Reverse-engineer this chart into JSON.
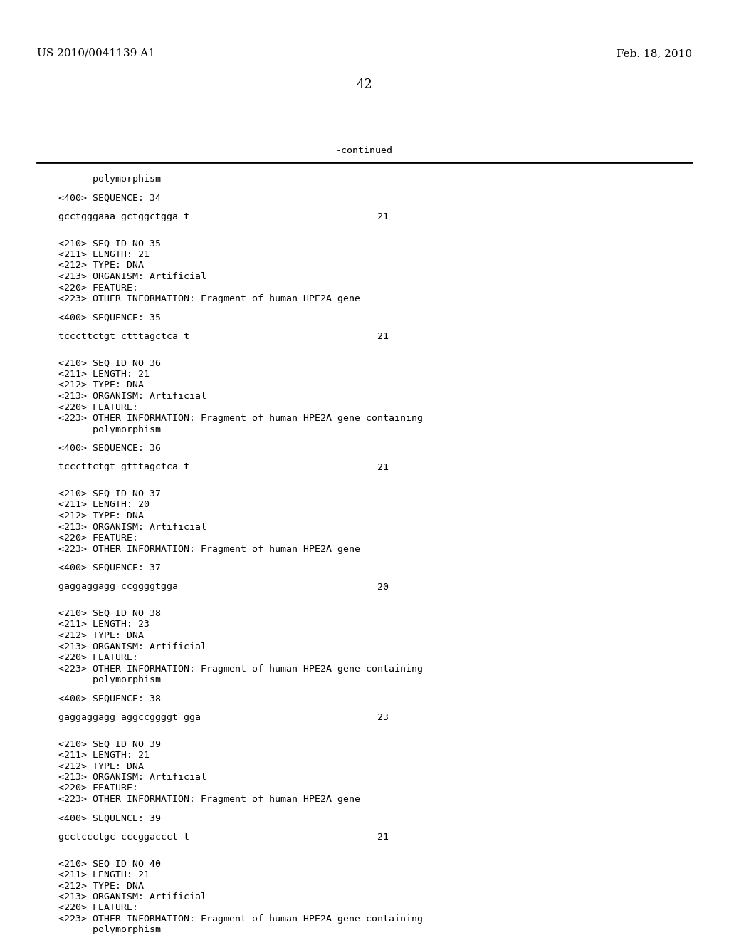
{
  "background_color": "#ffffff",
  "header_left": "US 2010/0041139 A1",
  "header_right": "Feb. 18, 2010",
  "page_number": "42",
  "continued_label": "-continued",
  "header_fontsize": 11,
  "page_num_fontsize": 13,
  "mono_fontsize": 9.5,
  "content_blocks": [
    {
      "type": "indent",
      "text": "      polymorphism"
    },
    {
      "type": "blank"
    },
    {
      "type": "mono",
      "text": "<400> SEQUENCE: 34"
    },
    {
      "type": "blank"
    },
    {
      "type": "seq",
      "text": "gcctgggaaa gctggctgga t",
      "num": "21"
    },
    {
      "type": "blank"
    },
    {
      "type": "blank"
    },
    {
      "type": "mono",
      "text": "<210> SEQ ID NO 35"
    },
    {
      "type": "mono",
      "text": "<211> LENGTH: 21"
    },
    {
      "type": "mono",
      "text": "<212> TYPE: DNA"
    },
    {
      "type": "mono",
      "text": "<213> ORGANISM: Artificial"
    },
    {
      "type": "mono",
      "text": "<220> FEATURE:"
    },
    {
      "type": "mono",
      "text": "<223> OTHER INFORMATION: Fragment of human HPE2A gene"
    },
    {
      "type": "blank"
    },
    {
      "type": "mono",
      "text": "<400> SEQUENCE: 35"
    },
    {
      "type": "blank"
    },
    {
      "type": "seq",
      "text": "tcccttctgt ctttagctca t",
      "num": "21"
    },
    {
      "type": "blank"
    },
    {
      "type": "blank"
    },
    {
      "type": "mono",
      "text": "<210> SEQ ID NO 36"
    },
    {
      "type": "mono",
      "text": "<211> LENGTH: 21"
    },
    {
      "type": "mono",
      "text": "<212> TYPE: DNA"
    },
    {
      "type": "mono",
      "text": "<213> ORGANISM: Artificial"
    },
    {
      "type": "mono",
      "text": "<220> FEATURE:"
    },
    {
      "type": "mono",
      "text": "<223> OTHER INFORMATION: Fragment of human HPE2A gene containing"
    },
    {
      "type": "indent",
      "text": "      polymorphism"
    },
    {
      "type": "blank"
    },
    {
      "type": "mono",
      "text": "<400> SEQUENCE: 36"
    },
    {
      "type": "blank"
    },
    {
      "type": "seq",
      "text": "tcccttctgt gtttagctca t",
      "num": "21"
    },
    {
      "type": "blank"
    },
    {
      "type": "blank"
    },
    {
      "type": "mono",
      "text": "<210> SEQ ID NO 37"
    },
    {
      "type": "mono",
      "text": "<211> LENGTH: 20"
    },
    {
      "type": "mono",
      "text": "<212> TYPE: DNA"
    },
    {
      "type": "mono",
      "text": "<213> ORGANISM: Artificial"
    },
    {
      "type": "mono",
      "text": "<220> FEATURE:"
    },
    {
      "type": "mono",
      "text": "<223> OTHER INFORMATION: Fragment of human HPE2A gene"
    },
    {
      "type": "blank"
    },
    {
      "type": "mono",
      "text": "<400> SEQUENCE: 37"
    },
    {
      "type": "blank"
    },
    {
      "type": "seq",
      "text": "gaggaggagg ccggggtgga",
      "num": "20"
    },
    {
      "type": "blank"
    },
    {
      "type": "blank"
    },
    {
      "type": "mono",
      "text": "<210> SEQ ID NO 38"
    },
    {
      "type": "mono",
      "text": "<211> LENGTH: 23"
    },
    {
      "type": "mono",
      "text": "<212> TYPE: DNA"
    },
    {
      "type": "mono",
      "text": "<213> ORGANISM: Artificial"
    },
    {
      "type": "mono",
      "text": "<220> FEATURE:"
    },
    {
      "type": "mono",
      "text": "<223> OTHER INFORMATION: Fragment of human HPE2A gene containing"
    },
    {
      "type": "indent",
      "text": "      polymorphism"
    },
    {
      "type": "blank"
    },
    {
      "type": "mono",
      "text": "<400> SEQUENCE: 38"
    },
    {
      "type": "blank"
    },
    {
      "type": "seq",
      "text": "gaggaggagg aggccggggt gga",
      "num": "23"
    },
    {
      "type": "blank"
    },
    {
      "type": "blank"
    },
    {
      "type": "mono",
      "text": "<210> SEQ ID NO 39"
    },
    {
      "type": "mono",
      "text": "<211> LENGTH: 21"
    },
    {
      "type": "mono",
      "text": "<212> TYPE: DNA"
    },
    {
      "type": "mono",
      "text": "<213> ORGANISM: Artificial"
    },
    {
      "type": "mono",
      "text": "<220> FEATURE:"
    },
    {
      "type": "mono",
      "text": "<223> OTHER INFORMATION: Fragment of human HPE2A gene"
    },
    {
      "type": "blank"
    },
    {
      "type": "mono",
      "text": "<400> SEQUENCE: 39"
    },
    {
      "type": "blank"
    },
    {
      "type": "seq",
      "text": "gcctccctgc cccggaccct t",
      "num": "21"
    },
    {
      "type": "blank"
    },
    {
      "type": "blank"
    },
    {
      "type": "mono",
      "text": "<210> SEQ ID NO 40"
    },
    {
      "type": "mono",
      "text": "<211> LENGTH: 21"
    },
    {
      "type": "mono",
      "text": "<212> TYPE: DNA"
    },
    {
      "type": "mono",
      "text": "<213> ORGANISM: Artificial"
    },
    {
      "type": "mono",
      "text": "<220> FEATURE:"
    },
    {
      "type": "mono",
      "text": "<223> OTHER INFORMATION: Fragment of human HPE2A gene containing"
    },
    {
      "type": "indent",
      "text": "      polymorphism"
    }
  ]
}
